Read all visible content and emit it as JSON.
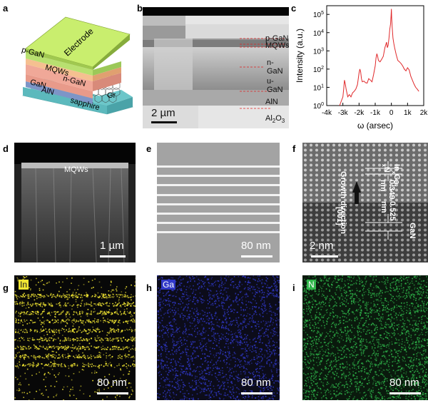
{
  "panel_labels": {
    "a": "a",
    "b": "b",
    "c": "c",
    "d": "d",
    "e": "e",
    "f": "f",
    "g": "g",
    "h": "h",
    "i": "i"
  },
  "device": {
    "electrode": "Electrode",
    "pgan": "p-GaN",
    "mqws": "MQWs",
    "ngan": "n-GaN",
    "gan": "GaN",
    "aln": "AlN",
    "sapphire": "sapphire",
    "gr": "Gr"
  },
  "sem_b": {
    "layers": [
      "p-GaN",
      "MQWs",
      "n-GaN",
      "u-GaN",
      "AlN"
    ],
    "substrate_base": "Al",
    "substrate_sub1": "2",
    "substrate_mid": "O",
    "substrate_sub2": "3",
    "scale": "2 µm"
  },
  "chart_data": {
    "type": "line",
    "xlabel": "ω (arsec)",
    "ylabel": "Intensity (a.u.)",
    "xlim": [
      -4000,
      2000
    ],
    "xticks": [
      "-4k",
      "-3k",
      "-2k",
      "-1k",
      "0",
      "1k",
      "2k"
    ],
    "ytick_base": "10",
    "ytick_exponents": [
      "0",
      "1",
      "2",
      "3",
      "4",
      "5"
    ],
    "yscale": "log",
    "ylim": [
      1,
      300000
    ],
    "color": "#e0282a",
    "series": [
      {
        "x": [
          -3200,
          -3000,
          -2950,
          -2900,
          -2850,
          -2800,
          -2750,
          -2700,
          -2600,
          -2500,
          -2400,
          -2300,
          -2200,
          -2100,
          -2000,
          -1950,
          -1900,
          -1850,
          -1800,
          -1700,
          -1600,
          -1500,
          -1400,
          -1300,
          -1200,
          -1100,
          -1000,
          -950,
          -900,
          -850,
          -800,
          -700,
          -600,
          -500,
          -400,
          -300,
          -250,
          -200,
          -150,
          -100,
          -50,
          -20,
          0,
          20,
          50,
          100,
          150,
          200,
          300,
          400,
          500,
          600,
          700,
          800,
          900,
          1000,
          1100,
          1200,
          1300,
          1400,
          1500,
          1600,
          1700
        ],
        "values": [
          1,
          3,
          8,
          25,
          15,
          8,
          5,
          3,
          4,
          3,
          5,
          6,
          8,
          14,
          60,
          100,
          70,
          30,
          20,
          22,
          18,
          17,
          30,
          25,
          20,
          50,
          150,
          400,
          700,
          500,
          300,
          250,
          350,
          500,
          1500,
          3000,
          1500,
          2000,
          5000,
          15000,
          30000,
          80000,
          200000,
          60000,
          20000,
          5000,
          2500,
          1500,
          600,
          300,
          250,
          200,
          150,
          100,
          80,
          120,
          90,
          40,
          25,
          15,
          10,
          8,
          6
        ]
      }
    ]
  },
  "panel_d": {
    "label": "MQWs",
    "scale": "1 µm"
  },
  "panel_e": {
    "scale": "80 nm"
  },
  "panel_f": {
    "top_formula_base": "In",
    "top_formula_sub1": "x",
    "top_formula_mid": "Ga",
    "top_formula_sub2": "1-x",
    "top_formula_end": "N",
    "top_spacing": "0.349 nm",
    "growth": "Growth direction",
    "dir": "[001]",
    "bottom_spacing": "0.525 nm",
    "bottom_formula": "GaN",
    "scale": "2 nm"
  },
  "eds": {
    "g": {
      "element": "In",
      "scale": "80 nm",
      "color": "#f2e632"
    },
    "h": {
      "element": "Ga",
      "scale": "80 nm",
      "color": "#3038c8"
    },
    "i": {
      "element": "N",
      "scale": "80 nm",
      "color": "#2fb64a"
    }
  }
}
